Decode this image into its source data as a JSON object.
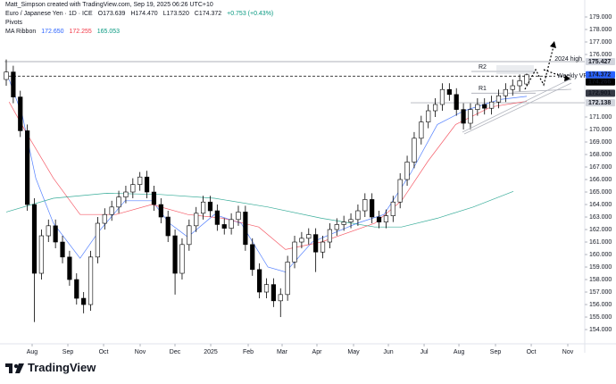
{
  "header": {
    "author_line": "Matt_Simpson created with TradingView.com, Sep 19, 2025 06:26 UTC+10",
    "symbol": "Euro / Japanese Yen · 1D · ICE",
    "ohlc": [
      "O173.639",
      "H174.470",
      "L173.520",
      "C174.372"
    ],
    "change": "+0.753 (+0.43%)",
    "pivots": "Pivots",
    "ma_ribbon": "MA Ribbon"
  },
  "chart_data": {
    "type": "candlestick",
    "candles": {
      "open": [
        174.0,
        174.6,
        172.6,
        169.9,
        164.0,
        158.5,
        161.5,
        162.3,
        161.0,
        159.8,
        158.0,
        156.5,
        156.0,
        159.8,
        162.5,
        163.2,
        163.8,
        164.6,
        165.0,
        165.6,
        166.2,
        165.0,
        164.0,
        163.0,
        161.5,
        158.5,
        160.8,
        162.3,
        163.3,
        164.2,
        163.5,
        162.4,
        162.1,
        162.8,
        163.4,
        160.8,
        158.8,
        157.0,
        157.6,
        156.3,
        156.8,
        159.4,
        161.0,
        161.3,
        161.6,
        160.2,
        161.0,
        162.0,
        162.4,
        162.6,
        162.8,
        163.5,
        164.4,
        163.0,
        162.6,
        163.1,
        164.2,
        166.0,
        167.4,
        169.3,
        170.6,
        171.5,
        172.0,
        173.2,
        172.8,
        171.6,
        170.5,
        171.6,
        172.0,
        171.7,
        172.2,
        172.7,
        173.2,
        173.5,
        173.639
      ],
      "high": [
        175.6,
        175.1,
        173.1,
        170.4,
        164.5,
        162.0,
        162.8,
        162.8,
        161.5,
        160.3,
        158.5,
        157.0,
        160.3,
        163.0,
        163.7,
        164.3,
        165.1,
        165.5,
        166.1,
        166.6,
        166.7,
        165.5,
        164.5,
        163.5,
        162.0,
        161.3,
        162.8,
        163.8,
        164.7,
        164.7,
        164.0,
        162.9,
        163.3,
        163.9,
        163.9,
        161.3,
        159.3,
        158.1,
        158.1,
        157.3,
        159.9,
        161.5,
        161.8,
        162.1,
        162.1,
        161.5,
        162.5,
        162.9,
        163.1,
        163.3,
        164.0,
        164.9,
        164.9,
        163.5,
        163.6,
        164.7,
        166.5,
        167.9,
        169.8,
        171.1,
        172.0,
        172.5,
        173.7,
        173.7,
        173.3,
        172.1,
        172.1,
        172.5,
        172.5,
        172.7,
        173.2,
        173.7,
        174.0,
        174.4,
        174.47
      ],
      "low": [
        173.5,
        172.1,
        169.4,
        163.5,
        154.6,
        158.0,
        161.0,
        160.5,
        159.3,
        157.5,
        156.0,
        155.3,
        155.5,
        159.3,
        162.0,
        162.7,
        163.3,
        164.1,
        164.5,
        165.1,
        164.5,
        163.5,
        162.5,
        161.0,
        156.8,
        158.0,
        160.3,
        161.8,
        162.8,
        163.0,
        161.9,
        161.6,
        161.6,
        162.3,
        160.3,
        158.3,
        156.5,
        156.5,
        155.8,
        155.0,
        156.3,
        158.9,
        160.5,
        160.8,
        158.6,
        159.7,
        160.5,
        161.5,
        161.9,
        162.1,
        162.3,
        163.0,
        162.5,
        162.1,
        162.1,
        162.6,
        163.7,
        165.5,
        166.9,
        168.8,
        170.1,
        171.0,
        171.5,
        172.3,
        171.1,
        170.0,
        170.0,
        171.1,
        171.2,
        171.2,
        171.7,
        172.2,
        172.7,
        173.0,
        173.52
      ],
      "close": [
        174.6,
        172.6,
        169.9,
        164.0,
        158.5,
        161.5,
        162.3,
        161.0,
        159.8,
        158.0,
        156.5,
        156.0,
        159.8,
        162.5,
        163.2,
        163.8,
        164.6,
        165.0,
        165.6,
        166.2,
        165.0,
        164.0,
        163.0,
        161.5,
        158.5,
        160.8,
        162.3,
        163.3,
        164.2,
        163.5,
        162.4,
        162.1,
        162.8,
        163.4,
        160.8,
        158.8,
        157.0,
        157.6,
        156.3,
        156.8,
        159.4,
        161.0,
        161.3,
        161.6,
        160.2,
        161.0,
        162.0,
        162.4,
        162.6,
        162.8,
        163.5,
        164.4,
        163.0,
        162.6,
        163.1,
        164.2,
        166.0,
        167.4,
        169.3,
        170.6,
        171.5,
        172.0,
        173.2,
        172.8,
        171.6,
        170.5,
        171.6,
        172.0,
        171.7,
        172.2,
        172.7,
        173.2,
        173.5,
        173.9,
        174.372
      ]
    },
    "up_color": "#ffffff",
    "down_color": "#000000",
    "wick_color": "#000000",
    "ma_lines": [
      {
        "color": "#2962ff",
        "last_label": "172.650",
        "x": [
          0.4,
          2.3,
          4.2,
          6.7,
          10.5,
          13.1,
          16.9,
          20.7,
          23.2,
          25.8,
          29.6,
          33.4,
          37.2,
          39.7,
          43.5,
          49.9,
          53.7,
          57.5,
          61.3,
          65.1,
          70.2,
          74
        ],
        "values": [
          174.0,
          171.1,
          166.1,
          162.5,
          159.7,
          161.8,
          164.3,
          164.3,
          162.5,
          161.4,
          163.2,
          162.5,
          159.0,
          158.6,
          161.0,
          162.5,
          163.2,
          166.5,
          170.4,
          171.5,
          172.4,
          172.65
        ]
      },
      {
        "color": "#f23645",
        "last_label": "172.255",
        "x": [
          0.4,
          2.9,
          6.7,
          10.5,
          15.6,
          20.7,
          25.8,
          30.8,
          35.9,
          39.7,
          44.8,
          52.4,
          56.2,
          60.0,
          63.9,
          68.9,
          74
        ],
        "values": [
          172.2,
          169.7,
          166.1,
          163.2,
          163.2,
          164.0,
          163.2,
          162.9,
          162.2,
          160.4,
          161.0,
          162.5,
          164.3,
          167.5,
          170.4,
          171.8,
          172.255
        ]
      },
      {
        "color": "#089981",
        "last_label": "165.053",
        "x": [
          0,
          6.7,
          14.3,
          22.0,
          29.6,
          37.2,
          44.8,
          52.4,
          56.2,
          61.3,
          66.4,
          72.1
        ],
        "values": [
          163.4,
          164.5,
          164.9,
          164.8,
          164.5,
          163.8,
          162.9,
          162.2,
          162.2,
          162.9,
          163.8,
          165.053
        ]
      }
    ],
    "levels": [
      {
        "label": "2024 high",
        "value": 175.427,
        "color": "#9598a1",
        "badge_color": "#d1d4dc"
      },
      {
        "label": "Weekly VPOC",
        "value": 174.266,
        "color": "#000000",
        "badge_color": "#000000"
      },
      {
        "value": 172.138,
        "color": "#b2b5be",
        "badge_color": "#d1d4dc"
      }
    ],
    "pivots": [
      {
        "label": "R2",
        "value": 174.64,
        "color": "#b2b5be"
      },
      {
        "label": "R1",
        "value": 172.901,
        "color": "#b2b5be",
        "badge_color": "#363a45"
      }
    ],
    "price_badge_color": "#2962ff",
    "xlim": [
      -0.254,
      82.25
    ],
    "xticks": [
      {
        "value": 3.68,
        "label": "Aug"
      },
      {
        "value": 8.76,
        "label": "Sep"
      },
      {
        "value": 13.84,
        "label": "Oct"
      },
      {
        "value": 19.04,
        "label": "Nov"
      },
      {
        "value": 23.99,
        "label": "Dec"
      },
      {
        "value": 29.07,
        "label": "2025"
      },
      {
        "value": 34.4,
        "label": "Feb"
      },
      {
        "value": 39.22,
        "label": "Mar"
      },
      {
        "value": 44.17,
        "label": "Apr"
      },
      {
        "value": 49.38,
        "label": "May"
      },
      {
        "value": 54.33,
        "label": "Jun"
      },
      {
        "value": 59.41,
        "label": "Jul"
      },
      {
        "value": 64.36,
        "label": "Aug"
      },
      {
        "value": 69.56,
        "label": "Sep"
      },
      {
        "value": 74.64,
        "label": "Oct"
      },
      {
        "value": 79.84,
        "label": "Nov"
      }
    ],
    "ylim": [
      152.86,
      179.5
    ],
    "yticks": [
      {
        "value": 154,
        "label": "154.000"
      },
      {
        "value": 155,
        "label": "155.000"
      },
      {
        "value": 156,
        "label": "156.000"
      },
      {
        "value": 157,
        "label": "157.000"
      },
      {
        "value": 158,
        "label": "158.000"
      },
      {
        "value": 159,
        "label": "159.000"
      },
      {
        "value": 160,
        "label": "160.000"
      },
      {
        "value": 161,
        "label": "161.000"
      },
      {
        "value": 162,
        "label": "162.000"
      },
      {
        "value": 163,
        "label": "163.000"
      },
      {
        "value": 164,
        "label": "164.000"
      },
      {
        "value": 165,
        "label": "165.000"
      },
      {
        "value": 166,
        "label": "166.000"
      },
      {
        "value": 167,
        "label": "167.000"
      },
      {
        "value": 168,
        "label": "168.000"
      },
      {
        "value": 169,
        "label": "169.000"
      },
      {
        "value": 170,
        "label": "170.000"
      },
      {
        "value": 171,
        "label": "171.000"
      },
      {
        "value": 176,
        "label": "176.000"
      },
      {
        "value": 177,
        "label": "177.000"
      },
      {
        "value": 178,
        "label": "178.000"
      },
      {
        "value": 179,
        "label": "179.000"
      }
    ]
  },
  "footer": {
    "brand": "TradingView"
  }
}
